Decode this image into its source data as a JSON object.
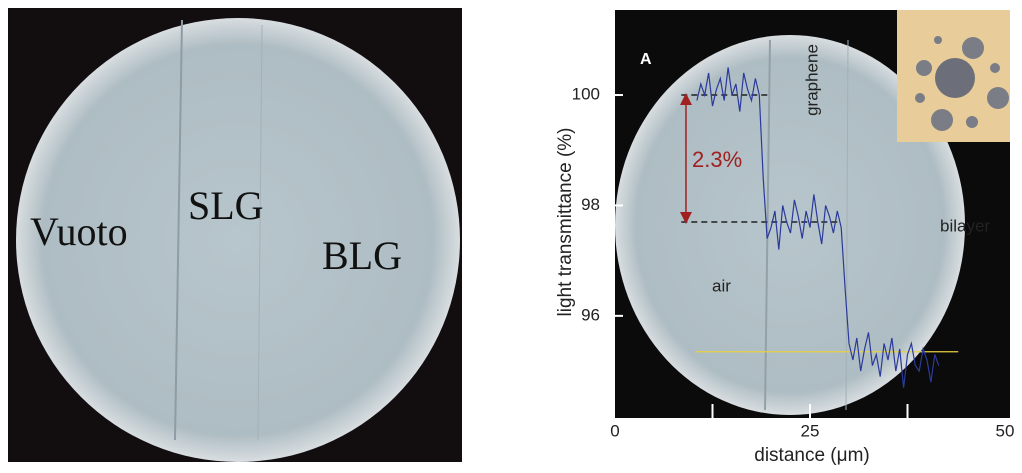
{
  "photo": {
    "labels": [
      "Vuoto",
      "SLG",
      "BLG"
    ]
  },
  "chart_data": {
    "type": "line",
    "panel_label": "A",
    "x_label": "distance (μm)",
    "y_label": "light transmittance (%)",
    "annotations": [
      "graphene",
      "air",
      "bilayer",
      "2.3%"
    ],
    "xlim": [
      0,
      50
    ],
    "xticks": [
      0,
      25,
      50
    ],
    "x_minor_ticks": [
      12.5,
      25,
      37.5
    ],
    "ylim": [
      94.15,
      101.54
    ],
    "yticks": [
      96,
      98,
      100
    ],
    "x": [
      10.5,
      11,
      11.5,
      12,
      12.5,
      13,
      13.5,
      14,
      14.5,
      15,
      15.5,
      16,
      16.5,
      17,
      17.5,
      18,
      18.5,
      19,
      19.5,
      20,
      20.5,
      21,
      21.5,
      22,
      22.5,
      23,
      23.5,
      24,
      24.5,
      25,
      25.5,
      26,
      26.5,
      27,
      27.5,
      28,
      28.5,
      29,
      29.5,
      30,
      30.5,
      31,
      31.5,
      32,
      32.5,
      33,
      33.5,
      34,
      34.5,
      35,
      35.5,
      36,
      36.5,
      37,
      37.5,
      38,
      38.5,
      39,
      39.5,
      40,
      40.5,
      41,
      41.5
    ],
    "series": [
      {
        "color": "#2b3a9a",
        "values": [
          99.9,
          100.2,
          100.0,
          100.4,
          99.8,
          100.1,
          100.3,
          99.9,
          100.5,
          100.0,
          100.2,
          99.7,
          100.4,
          100.1,
          99.9,
          100.3,
          100.0,
          98.5,
          97.4,
          97.6,
          97.9,
          97.2,
          98.0,
          97.7,
          97.5,
          98.1,
          97.8,
          97.4,
          97.9,
          97.6,
          98.2,
          97.7,
          97.3,
          98.0,
          97.8,
          97.5,
          97.9,
          97.6,
          96.5,
          95.5,
          95.2,
          95.6,
          95.0,
          95.4,
          95.7,
          95.1,
          95.3,
          94.9,
          95.5,
          95.2,
          95.6,
          95.0,
          95.4,
          94.7,
          95.3,
          95.5,
          95.1,
          95.0,
          95.4,
          95.2,
          94.8,
          95.3,
          95.1
        ]
      }
    ],
    "reference_lines": [
      {
        "y": 100,
        "x": [
          8.5,
          19.9
        ],
        "color": "#000000",
        "dashed": true
      },
      {
        "y": 97.7,
        "x": [
          8.5,
          29.0
        ],
        "color": "#000000",
        "dashed": true
      },
      {
        "y": 95.35,
        "x": [
          10.3,
          44.0
        ],
        "color": "#e8d040",
        "dashed": false
      }
    ],
    "arrow": {
      "x": 9.1,
      "y": [
        100,
        97.7
      ],
      "color": "#a02020"
    }
  }
}
